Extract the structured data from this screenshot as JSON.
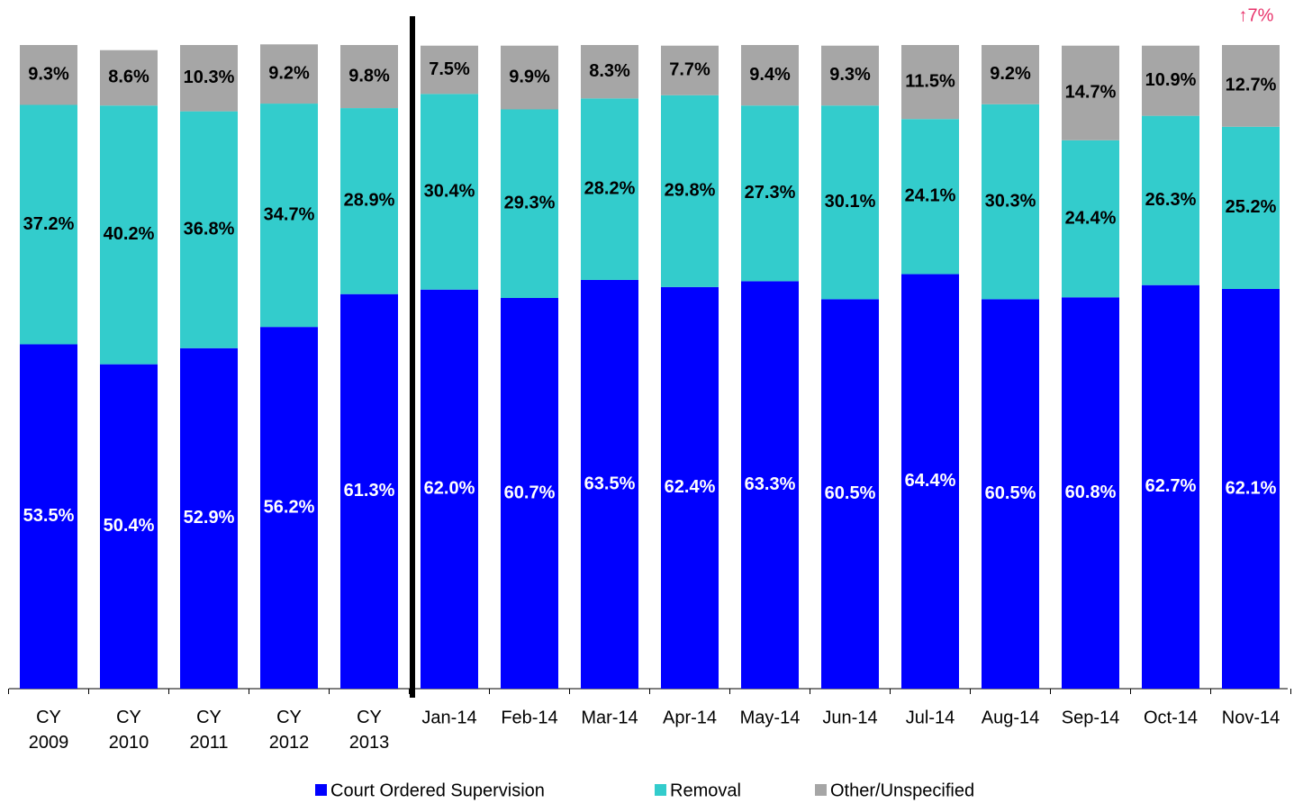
{
  "chart_data": {
    "type": "stacked_bar",
    "categories": [
      "CY 2009",
      "CY 2010",
      "CY 2011",
      "CY 2012",
      "CY 2013",
      "Jan-14",
      "Feb-14",
      "Mar-14",
      "Apr-14",
      "May-14",
      "Jun-14",
      "Jul-14",
      "Aug-14",
      "Sep-14",
      "Oct-14",
      "Nov-14"
    ],
    "series": [
      {
        "name": "Court Ordered Supervision",
        "color": "#0000ff",
        "values": [
          53.5,
          50.4,
          52.9,
          56.2,
          61.3,
          62.0,
          60.7,
          63.5,
          62.4,
          63.3,
          60.5,
          64.4,
          60.5,
          60.8,
          62.7,
          62.1
        ],
        "value_labels": [
          "53.5%",
          "50.4%",
          "52.9%",
          "56.2%",
          "61.3%",
          "62.0%",
          "60.7%",
          "63.5%",
          "62.4%",
          "63.3%",
          "60.5%",
          "64.4%",
          "60.5%",
          "60.8%",
          "62.7%",
          "62.1%"
        ]
      },
      {
        "name": "Removal",
        "color": "#33cccc",
        "values": [
          37.2,
          40.2,
          36.8,
          34.7,
          28.9,
          30.4,
          29.3,
          28.2,
          29.8,
          27.3,
          30.1,
          24.1,
          30.3,
          24.4,
          26.3,
          25.2
        ],
        "value_labels": [
          "37.2%",
          "40.2%",
          "36.8%",
          "34.7%",
          "28.9%",
          "30.4%",
          "29.3%",
          "28.2%",
          "29.8%",
          "27.3%",
          "30.1%",
          "24.1%",
          "30.3%",
          "24.4%",
          "26.3%",
          "25.2%"
        ]
      },
      {
        "name": "Other/Unspecified",
        "color": "#a6a6a6",
        "values": [
          9.3,
          8.6,
          10.3,
          9.2,
          9.8,
          7.5,
          9.9,
          8.3,
          7.7,
          9.4,
          9.3,
          11.5,
          9.2,
          14.7,
          10.9,
          12.7
        ],
        "value_labels": [
          "9.3%",
          "8.6%",
          "10.3%",
          "9.2%",
          "9.8%",
          "7.5%",
          "9.9%",
          "8.3%",
          "7.7%",
          "9.4%",
          "9.3%",
          "11.5%",
          "9.2%",
          "14.7%",
          "10.9%",
          "12.7%"
        ]
      }
    ],
    "ylim": [
      0,
      100
    ],
    "annotation": "↑7%",
    "legend": "bottom"
  }
}
